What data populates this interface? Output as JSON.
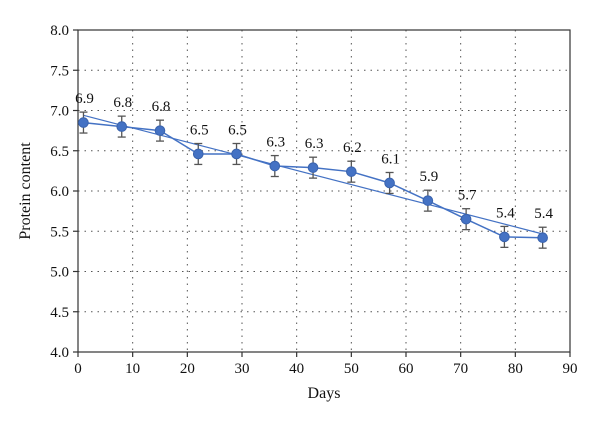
{
  "chart_data": {
    "type": "line",
    "title": "",
    "xlabel": "Days",
    "ylabel": "Protein content",
    "xlim": [
      0,
      90
    ],
    "ylim": [
      4.0,
      8.0
    ],
    "x_ticks": [
      "0",
      "10",
      "20",
      "30",
      "40",
      "50",
      "60",
      "70",
      "80",
      "90"
    ],
    "y_ticks": [
      "4.0",
      "4.5",
      "5.0",
      "5.5",
      "6.0",
      "6.5",
      "7.0",
      "7.5",
      "8.0"
    ],
    "grid": true,
    "legend": "none",
    "series": [
      {
        "x": [
          1,
          8,
          15,
          22,
          29,
          36,
          43,
          50,
          57,
          64,
          71,
          78,
          85
        ],
        "y": [
          6.85,
          6.8,
          6.75,
          6.46,
          6.46,
          6.31,
          6.29,
          6.24,
          6.1,
          5.88,
          5.65,
          5.43,
          5.42
        ],
        "error": [
          0.13,
          0.13,
          0.13,
          0.13,
          0.13,
          0.13,
          0.13,
          0.13,
          0.13,
          0.13,
          0.13,
          0.13,
          0.13
        ],
        "labels": [
          "6.9",
          "6.8",
          "6.8",
          "6.5",
          "6.5",
          "6.3",
          "6.3",
          "6.2",
          "6.1",
          "5.9",
          "5.7",
          "5.4",
          "5.4"
        ],
        "color": "#4472c4"
      }
    ],
    "trendline": {
      "type": "linear",
      "color": "#4472c4"
    }
  }
}
